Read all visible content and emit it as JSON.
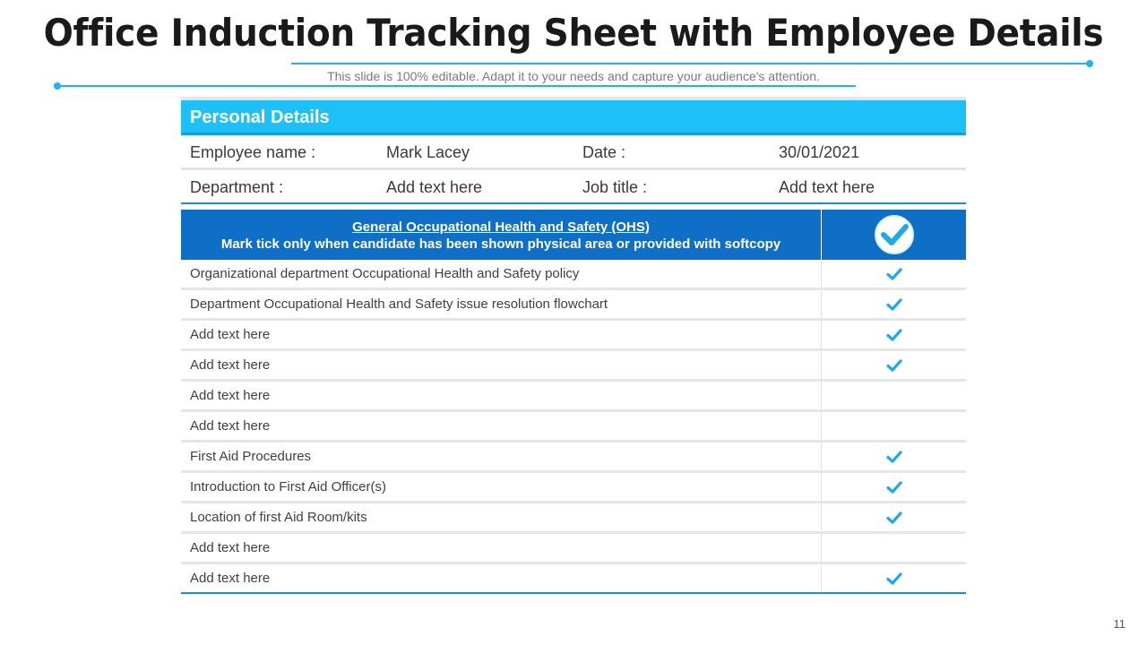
{
  "title": "Office Induction Tracking Sheet with Employee Details",
  "subtitle": "This slide is 100% editable. Adapt it to your needs and capture your audience's attention.",
  "page_number": "11",
  "colors": {
    "accent": "#1ec0fa",
    "dark_blue": "#0f6fc6",
    "tick": "#1fa9e6"
  },
  "personal_details": {
    "header": "Personal Details",
    "rows": [
      {
        "label1": "Employee name :",
        "value1": "Mark Lacey",
        "label2": "Date :",
        "value2": "30/01/2021"
      },
      {
        "label1": "Department :",
        "value1": "Add text here",
        "label2": "Job title :",
        "value2": "Add text here"
      }
    ]
  },
  "ohs": {
    "header_line1": "General Occupational Health and Safety (OHS)",
    "header_line2": "Mark tick only when candidate has been shown physical area or provided with softcopy",
    "header_icon": "check-circle-icon",
    "items": [
      {
        "label": "Organizational department Occupational Health and Safety  policy",
        "checked": true
      },
      {
        "label": "Department Occupational Health and Safety issue resolution flowchart",
        "checked": true
      },
      {
        "label": "Add text here",
        "checked": true
      },
      {
        "label": "Add text here",
        "checked": true
      },
      {
        "label": "Add text here",
        "checked": false
      },
      {
        "label": "Add text here",
        "checked": false
      },
      {
        "label": "First Aid Procedures",
        "checked": true
      },
      {
        "label": "Introduction  to First Aid Officer(s)",
        "checked": true
      },
      {
        "label": "Location of first Aid Room/kits",
        "checked": true
      },
      {
        "label": "Add text here",
        "checked": false
      },
      {
        "label": "Add text here",
        "checked": true
      }
    ]
  }
}
